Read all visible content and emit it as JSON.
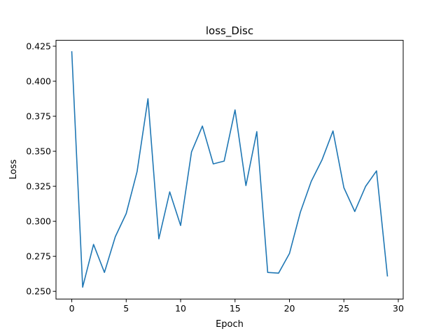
{
  "chart_data": {
    "type": "line",
    "title": "loss_Disc",
    "xlabel": "Epoch",
    "ylabel": "Loss",
    "xlim": [
      -1.45,
      30.45
    ],
    "ylim": [
      0.2445,
      0.4292
    ],
    "xticks": [
      0,
      5,
      10,
      15,
      20,
      25,
      30
    ],
    "xtick_labels": [
      "0",
      "5",
      "10",
      "15",
      "20",
      "25",
      "30"
    ],
    "yticks": [
      0.25,
      0.275,
      0.3,
      0.325,
      0.35,
      0.375,
      0.4,
      0.425
    ],
    "ytick_labels": [
      "0.250",
      "0.275",
      "0.300",
      "0.325",
      "0.350",
      "0.375",
      "0.400",
      "0.425"
    ],
    "grid": false,
    "series": [
      {
        "color": "#1f77b4",
        "x": [
          0,
          1,
          2,
          3,
          4,
          5,
          6,
          7,
          8,
          9,
          10,
          11,
          12,
          13,
          14,
          15,
          16,
          17,
          18,
          19,
          20,
          21,
          22,
          23,
          24,
          25,
          26,
          27,
          28,
          29
        ],
        "values": [
          0.421,
          0.253,
          0.2835,
          0.2635,
          0.289,
          0.3055,
          0.3355,
          0.3875,
          0.2875,
          0.321,
          0.297,
          0.3495,
          0.368,
          0.341,
          0.343,
          0.3795,
          0.3255,
          0.364,
          0.2635,
          0.263,
          0.277,
          0.3065,
          0.3285,
          0.344,
          0.3645,
          0.324,
          0.307,
          0.325,
          0.336,
          0.261
        ]
      }
    ]
  }
}
